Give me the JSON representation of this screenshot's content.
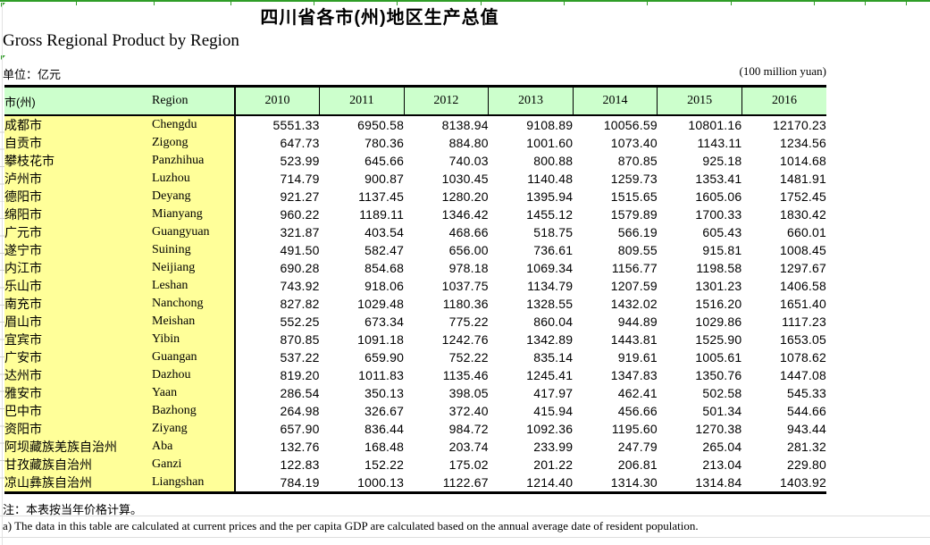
{
  "header": {
    "title_zh": "四川省各市(州)地区生产总值",
    "title_en": "Gross Regional Product by Region"
  },
  "units": {
    "zh": "单位：亿元",
    "en": "(100 million yuan)"
  },
  "table": {
    "col_city_header": "市(州)",
    "col_region_header": "Region",
    "years": [
      "2010",
      "2011",
      "2012",
      "2013",
      "2014",
      "2015",
      "2016"
    ],
    "rows": [
      {
        "city": "成都市",
        "region": "Chengdu",
        "values": [
          "5551.33",
          "6950.58",
          "8138.94",
          "9108.89",
          "10056.59",
          "10801.16",
          "12170.23"
        ]
      },
      {
        "city": "自贡市",
        "region": "Zigong",
        "values": [
          "647.73",
          "780.36",
          "884.80",
          "1001.60",
          "1073.40",
          "1143.11",
          "1234.56"
        ]
      },
      {
        "city": "攀枝花市",
        "region": "Panzhihua",
        "values": [
          "523.99",
          "645.66",
          "740.03",
          "800.88",
          "870.85",
          "925.18",
          "1014.68"
        ]
      },
      {
        "city": "泸州市",
        "region": "Luzhou",
        "values": [
          "714.79",
          "900.87",
          "1030.45",
          "1140.48",
          "1259.73",
          "1353.41",
          "1481.91"
        ]
      },
      {
        "city": "德阳市",
        "region": "Deyang",
        "values": [
          "921.27",
          "1137.45",
          "1280.20",
          "1395.94",
          "1515.65",
          "1605.06",
          "1752.45"
        ]
      },
      {
        "city": "绵阳市",
        "region": "Mianyang",
        "values": [
          "960.22",
          "1189.11",
          "1346.42",
          "1455.12",
          "1579.89",
          "1700.33",
          "1830.42"
        ]
      },
      {
        "city": "广元市",
        "region": "Guangyuan",
        "values": [
          "321.87",
          "403.54",
          "468.66",
          "518.75",
          "566.19",
          "605.43",
          "660.01"
        ]
      },
      {
        "city": "遂宁市",
        "region": "Suining",
        "values": [
          "491.50",
          "582.47",
          "656.00",
          "736.61",
          "809.55",
          "915.81",
          "1008.45"
        ]
      },
      {
        "city": "内江市",
        "region": "Neijiang",
        "values": [
          "690.28",
          "854.68",
          "978.18",
          "1069.34",
          "1156.77",
          "1198.58",
          "1297.67"
        ]
      },
      {
        "city": "乐山市",
        "region": "Leshan",
        "values": [
          "743.92",
          "918.06",
          "1037.75",
          "1134.79",
          "1207.59",
          "1301.23",
          "1406.58"
        ]
      },
      {
        "city": "南充市",
        "region": "Nanchong",
        "values": [
          "827.82",
          "1029.48",
          "1180.36",
          "1328.55",
          "1432.02",
          "1516.20",
          "1651.40"
        ]
      },
      {
        "city": "眉山市",
        "region": "Meishan",
        "values": [
          "552.25",
          "673.34",
          "775.22",
          "860.04",
          "944.89",
          "1029.86",
          "1117.23"
        ]
      },
      {
        "city": "宜宾市",
        "region": "Yibin",
        "values": [
          "870.85",
          "1091.18",
          "1242.76",
          "1342.89",
          "1443.81",
          "1525.90",
          "1653.05"
        ]
      },
      {
        "city": "广安市",
        "region": "Guangan",
        "values": [
          "537.22",
          "659.90",
          "752.22",
          "835.14",
          "919.61",
          "1005.61",
          "1078.62"
        ]
      },
      {
        "city": "达州市",
        "region": "Dazhou",
        "values": [
          "819.20",
          "1011.83",
          "1135.46",
          "1245.41",
          "1347.83",
          "1350.76",
          "1447.08"
        ]
      },
      {
        "city": "雅安市",
        "region": "Yaan",
        "values": [
          "286.54",
          "350.13",
          "398.05",
          "417.97",
          "462.41",
          "502.58",
          "545.33"
        ]
      },
      {
        "city": "巴中市",
        "region": "Bazhong",
        "values": [
          "264.98",
          "326.67",
          "372.40",
          "415.94",
          "456.66",
          "501.34",
          "544.66"
        ]
      },
      {
        "city": "资阳市",
        "region": "Ziyang",
        "values": [
          "657.90",
          "836.44",
          "984.72",
          "1092.36",
          "1195.60",
          "1270.38",
          "943.44"
        ]
      },
      {
        "city": "阿坝藏族羌族自治州",
        "region": "Aba",
        "values": [
          "132.76",
          "168.48",
          "203.74",
          "233.99",
          "247.79",
          "265.04",
          "281.32"
        ]
      },
      {
        "city": "甘孜藏族自治州",
        "region": "Ganzi",
        "values": [
          "122.83",
          "152.22",
          "175.02",
          "201.22",
          "206.81",
          "213.04",
          "229.80"
        ]
      },
      {
        "city": "凉山彝族自治州",
        "region": "Liangshan",
        "values": [
          "784.19",
          "1000.13",
          "1122.67",
          "1214.40",
          "1314.30",
          "1314.84",
          "1403.92"
        ]
      }
    ]
  },
  "notes": {
    "zh": "注：本表按当年价格计算。",
    "en": "a) The data in this table are calculated at current prices and the per capita GDP are calculated based on the annual average date of resident population."
  },
  "colors": {
    "header_bg": "#CCFFCC",
    "row_label_bg": "#FFFF99",
    "border_black": "#000000",
    "excel_green_accent": "#2F9D27",
    "gridline_gray": "#DEDEDE"
  }
}
